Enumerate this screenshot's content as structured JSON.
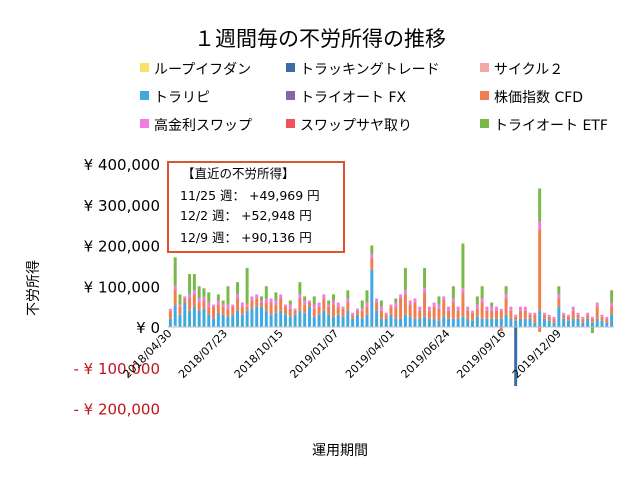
{
  "chart_data": {
    "type": "bar",
    "stacked": true,
    "title": "１週間毎の不労所得の推移",
    "xlabel": "運用期間",
    "ylabel": "不労所得",
    "ylim": [
      -200000,
      400000
    ],
    "y_ticks": [
      {
        "value": 400000,
        "label": "¥ 400,000",
        "negative": false
      },
      {
        "value": 300000,
        "label": "¥ 300,000",
        "negative": false
      },
      {
        "value": 200000,
        "label": "¥ 200,000",
        "negative": false
      },
      {
        "value": 100000,
        "label": "¥ 100,000",
        "negative": false
      },
      {
        "value": 0,
        "label": "¥ 0",
        "negative": false
      },
      {
        "value": -100000,
        "label": "- ¥ 100,000",
        "negative": true
      },
      {
        "value": -200000,
        "label": "- ¥ 200,000",
        "negative": true
      }
    ],
    "x_tick_labels": [
      "2018/04/30",
      "2018/07/23",
      "2018/10/15",
      "2019/01/07",
      "2019/04/01",
      "2019/06/24",
      "2019/09/16",
      "2019/12/09"
    ],
    "grid": false,
    "legend_position": "top",
    "series": [
      {
        "name": "ループイフダン",
        "color": "#f7e36a"
      },
      {
        "name": "トラッキングトレード",
        "color": "#3a6ea5"
      },
      {
        "name": "サイクル２",
        "color": "#f4a7a7"
      },
      {
        "name": "トラリピ",
        "color": "#41a8e2"
      },
      {
        "name": "トライオート FX",
        "color": "#8466a9"
      },
      {
        "name": "株価指数 CFD",
        "color": "#f07f4f"
      },
      {
        "name": "高金利スワップ",
        "color": "#f07de6"
      },
      {
        "name": "スワップサヤ取り",
        "color": "#f0515a"
      },
      {
        "name": "トライオート ETF",
        "color": "#79b84a"
      }
    ],
    "weeks": [
      [
        0,
        0,
        0,
        20000,
        0,
        20000,
        5000,
        0,
        0
      ],
      [
        3000,
        0,
        0,
        50000,
        0,
        40000,
        8000,
        0,
        70000
      ],
      [
        0,
        0,
        0,
        30000,
        0,
        20000,
        5000,
        0,
        25000
      ],
      [
        0,
        0,
        0,
        60000,
        0,
        10000,
        5000,
        0,
        0
      ],
      [
        0,
        0,
        0,
        40000,
        0,
        30000,
        10000,
        0,
        50000
      ],
      [
        0,
        0,
        0,
        50000,
        0,
        30000,
        10000,
        0,
        40000
      ],
      [
        0,
        0,
        0,
        40000,
        0,
        20000,
        10000,
        0,
        30000
      ],
      [
        0,
        0,
        0,
        45000,
        0,
        20000,
        10000,
        0,
        20000
      ],
      [
        0,
        0,
        0,
        30000,
        0,
        20000,
        10000,
        0,
        25000
      ],
      [
        0,
        0,
        0,
        20000,
        0,
        30000,
        5000,
        0,
        0
      ],
      [
        0,
        0,
        0,
        35000,
        0,
        20000,
        10000,
        0,
        15000
      ],
      [
        0,
        0,
        0,
        30000,
        0,
        20000,
        5000,
        0,
        10000
      ],
      [
        0,
        0,
        0,
        25000,
        0,
        20000,
        10000,
        0,
        45000
      ],
      [
        0,
        0,
        0,
        30000,
        0,
        20000,
        5000,
        0,
        0
      ],
      [
        0,
        0,
        0,
        40000,
        0,
        30000,
        10000,
        0,
        30000
      ],
      [
        0,
        0,
        0,
        30000,
        0,
        20000,
        10000,
        0,
        0
      ],
      [
        0,
        0,
        0,
        40000,
        0,
        10000,
        5000,
        0,
        90000
      ],
      [
        0,
        0,
        0,
        45000,
        0,
        20000,
        10000,
        0,
        0
      ],
      [
        0,
        0,
        0,
        50000,
        0,
        20000,
        10000,
        0,
        0
      ],
      [
        0,
        0,
        0,
        50000,
        0,
        10000,
        5000,
        0,
        10000
      ],
      [
        0,
        0,
        0,
        40000,
        0,
        20000,
        10000,
        0,
        30000
      ],
      [
        0,
        0,
        0,
        30000,
        0,
        30000,
        10000,
        0,
        0
      ],
      [
        0,
        0,
        0,
        35000,
        0,
        20000,
        10000,
        0,
        20000
      ],
      [
        0,
        0,
        0,
        40000,
        0,
        30000,
        10000,
        0,
        0
      ],
      [
        0,
        0,
        0,
        30000,
        0,
        20000,
        5000,
        0,
        0
      ],
      [
        0,
        0,
        0,
        25000,
        0,
        20000,
        10000,
        0,
        10000
      ],
      [
        0,
        0,
        0,
        30000,
        0,
        10000,
        5000,
        0,
        0
      ],
      [
        0,
        0,
        0,
        40000,
        0,
        30000,
        10000,
        0,
        30000
      ],
      [
        0,
        0,
        0,
        35000,
        0,
        20000,
        10000,
        0,
        10000
      ],
      [
        0,
        0,
        0,
        50000,
        0,
        10000,
        5000,
        0,
        0
      ],
      [
        0,
        0,
        0,
        25000,
        0,
        20000,
        10000,
        0,
        20000
      ],
      [
        0,
        0,
        0,
        30000,
        0,
        20000,
        10000,
        0,
        0
      ],
      [
        0,
        0,
        0,
        40000,
        0,
        30000,
        10000,
        0,
        0
      ],
      [
        0,
        0,
        0,
        30000,
        0,
        20000,
        5000,
        0,
        10000
      ],
      [
        0,
        0,
        0,
        25000,
        0,
        30000,
        10000,
        0,
        15000
      ],
      [
        0,
        0,
        0,
        30000,
        0,
        20000,
        10000,
        0,
        0
      ],
      [
        0,
        0,
        0,
        25000,
        0,
        20000,
        5000,
        0,
        0
      ],
      [
        0,
        0,
        0,
        40000,
        0,
        20000,
        10000,
        0,
        20000
      ],
      [
        0,
        0,
        0,
        20000,
        0,
        10000,
        5000,
        0,
        0
      ],
      [
        0,
        0,
        0,
        30000,
        0,
        10000,
        5000,
        0,
        0
      ],
      [
        0,
        0,
        0,
        20000,
        0,
        20000,
        5000,
        0,
        20000
      ],
      [
        0,
        0,
        0,
        30000,
        0,
        20000,
        10000,
        0,
        30000
      ],
      [
        0,
        0,
        0,
        140000,
        0,
        30000,
        10000,
        0,
        20000
      ],
      [
        0,
        0,
        0,
        40000,
        0,
        20000,
        10000,
        0,
        0
      ],
      [
        0,
        0,
        0,
        20000,
        0,
        20000,
        10000,
        0,
        15000
      ],
      [
        0,
        0,
        0,
        20000,
        0,
        10000,
        5000,
        0,
        0
      ],
      [
        0,
        0,
        0,
        30000,
        0,
        20000,
        5000,
        0,
        0
      ],
      [
        0,
        0,
        0,
        20000,
        0,
        30000,
        10000,
        0,
        10000
      ],
      [
        0,
        0,
        0,
        20000,
        0,
        50000,
        10000,
        0,
        0
      ],
      [
        0,
        0,
        0,
        30000,
        0,
        50000,
        10000,
        0,
        55000
      ],
      [
        0,
        0,
        0,
        25000,
        0,
        30000,
        10000,
        0,
        0
      ],
      [
        0,
        0,
        0,
        20000,
        0,
        40000,
        10000,
        0,
        0
      ],
      [
        0,
        0,
        0,
        20000,
        0,
        20000,
        10000,
        0,
        0
      ],
      [
        0,
        0,
        0,
        25000,
        0,
        60000,
        10000,
        0,
        50000
      ],
      [
        0,
        0,
        0,
        20000,
        0,
        20000,
        10000,
        0,
        0
      ],
      [
        0,
        0,
        0,
        20000,
        0,
        30000,
        10000,
        0,
        0
      ],
      [
        0,
        0,
        0,
        15000,
        0,
        30000,
        10000,
        0,
        20000
      ],
      [
        0,
        0,
        0,
        25000,
        0,
        40000,
        10000,
        0,
        0
      ],
      [
        0,
        0,
        0,
        20000,
        0,
        20000,
        10000,
        0,
        0
      ],
      [
        0,
        0,
        0,
        20000,
        0,
        40000,
        10000,
        0,
        30000
      ],
      [
        0,
        0,
        0,
        20000,
        0,
        20000,
        10000,
        0,
        0
      ],
      [
        0,
        0,
        0,
        25000,
        0,
        60000,
        10000,
        0,
        110000
      ],
      [
        0,
        0,
        0,
        20000,
        0,
        20000,
        10000,
        0,
        0
      ],
      [
        0,
        0,
        0,
        15000,
        0,
        20000,
        5000,
        0,
        0
      ],
      [
        0,
        0,
        0,
        25000,
        0,
        20000,
        10000,
        0,
        20000
      ],
      [
        0,
        0,
        0,
        20000,
        0,
        40000,
        10000,
        0,
        30000
      ],
      [
        0,
        0,
        0,
        20000,
        0,
        20000,
        10000,
        0,
        0
      ],
      [
        0,
        0,
        0,
        20000,
        0,
        20000,
        10000,
        0,
        10000
      ],
      [
        0,
        0,
        0,
        20000,
        0,
        20000,
        10000,
        0,
        0
      ],
      [
        0,
        0,
        0,
        20000,
        0,
        20000,
        5000,
        0,
        0
      ],
      [
        0,
        0,
        0,
        30000,
        0,
        40000,
        10000,
        0,
        20000
      ],
      [
        0,
        0,
        0,
        20000,
        0,
        20000,
        10000,
        0,
        0
      ],
      [
        0,
        0,
        0,
        15000,
        0,
        10000,
        5000,
        0,
        0
      ],
      [
        0,
        0,
        0,
        20000,
        0,
        20000,
        10000,
        0,
        0
      ],
      [
        0,
        0,
        0,
        20000,
        0,
        20000,
        10000,
        0,
        0
      ],
      [
        0,
        0,
        0,
        20000,
        0,
        10000,
        5000,
        0,
        0
      ],
      [
        0,
        0,
        0,
        10000,
        0,
        20000,
        5000,
        0,
        0
      ],
      [
        0,
        0,
        0,
        40000,
        0,
        200000,
        20000,
        0,
        80000
      ],
      [
        0,
        0,
        0,
        20000,
        0,
        10000,
        5000,
        0,
        0
      ],
      [
        0,
        0,
        0,
        15000,
        0,
        10000,
        5000,
        0,
        0
      ],
      [
        0,
        0,
        0,
        10000,
        0,
        10000,
        5000,
        0,
        0
      ],
      [
        0,
        0,
        0,
        50000,
        0,
        20000,
        10000,
        0,
        20000
      ],
      [
        0,
        0,
        0,
        20000,
        0,
        10000,
        5000,
        0,
        0
      ],
      [
        0,
        0,
        0,
        15000,
        0,
        10000,
        5000,
        0,
        0
      ],
      [
        0,
        0,
        0,
        20000,
        0,
        20000,
        10000,
        0,
        0
      ],
      [
        0,
        0,
        0,
        20000,
        0,
        10000,
        5000,
        0,
        0
      ],
      [
        0,
        0,
        0,
        10000,
        0,
        10000,
        5000,
        0,
        0
      ],
      [
        0,
        0,
        0,
        20000,
        0,
        10000,
        5000,
        0,
        0
      ],
      [
        0,
        0,
        0,
        10000,
        0,
        10000,
        5000,
        0,
        0
      ],
      [
        0,
        0,
        0,
        20000,
        0,
        30000,
        10000,
        0,
        0
      ],
      [
        0,
        0,
        0,
        15000,
        0,
        10000,
        5000,
        0,
        0
      ],
      [
        0,
        0,
        0,
        10000,
        0,
        10000,
        5000,
        0,
        0
      ],
      [
        0,
        0,
        0,
        30000,
        0,
        20000,
        10000,
        0,
        30000
      ]
    ],
    "negatives": [
      {
        "week": 72,
        "value": -145000,
        "color": "#3a6ea5"
      },
      {
        "week": 69,
        "value": -10000,
        "color": "#f07f4f"
      },
      {
        "week": 77,
        "value": -12000,
        "color": "#f07f4f"
      },
      {
        "week": 88,
        "value": -15000,
        "color": "#79b84a"
      }
    ]
  },
  "callout": {
    "title": "【直近の不労所得】",
    "lines": [
      "11/25 週：  +49,969 円",
      "12/2 週：  +52,948 円",
      "12/9 週：  +90,136 円"
    ],
    "border_color": "#e0532c"
  }
}
